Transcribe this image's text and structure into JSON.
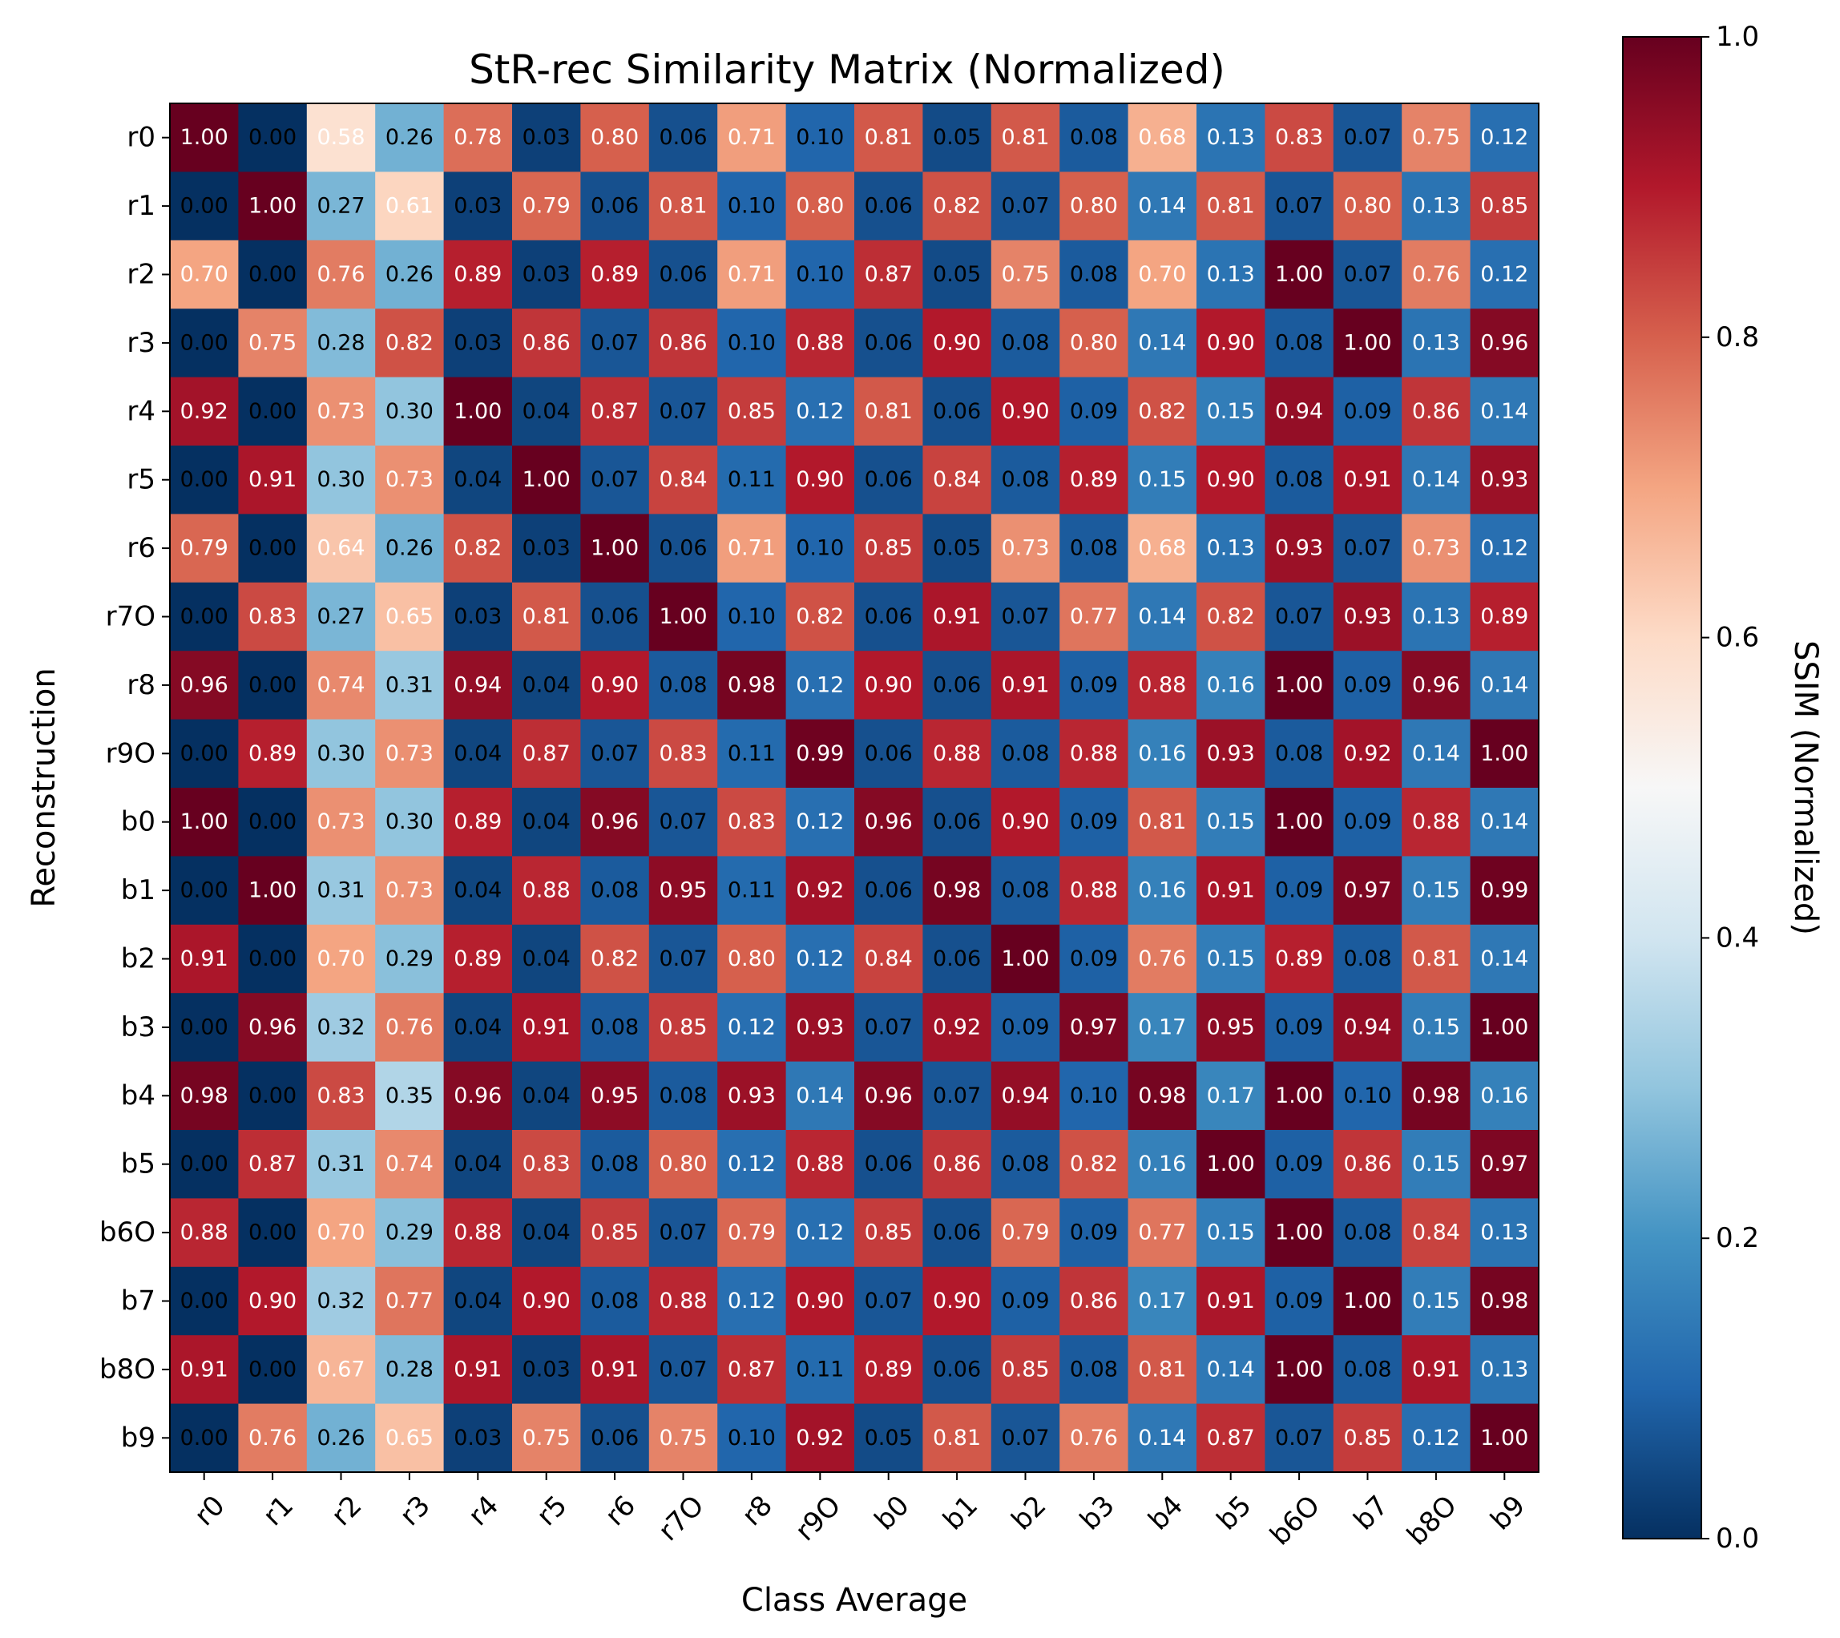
{
  "chart_data": {
    "type": "heatmap",
    "title": "StR-rec Similarity Matrix (Normalized)",
    "xlabel": "Class Average",
    "ylabel": "Reconstruction",
    "colorbar_label": "SSIM (Normalized)",
    "colormap": "RdBu_r",
    "vmin": 0.0,
    "vmax": 1.0,
    "colorbar_ticks": [
      "0.0",
      "0.2",
      "0.4",
      "0.6",
      "0.8",
      "1.0"
    ],
    "x_categories": [
      "r0",
      "r1",
      "r2",
      "r3",
      "r4",
      "r5",
      "r6",
      "r7O",
      "r8",
      "r9O",
      "b0",
      "b1",
      "b2",
      "b3",
      "b4",
      "b5",
      "b6O",
      "b7",
      "b8O",
      "b9"
    ],
    "y_categories": [
      "r0",
      "r1",
      "r2",
      "r3",
      "r4",
      "r5",
      "r6",
      "r7O",
      "r8",
      "r9O",
      "b0",
      "b1",
      "b2",
      "b3",
      "b4",
      "b5",
      "b6O",
      "b7",
      "b8O",
      "b9"
    ],
    "values": [
      [
        1.0,
        0.0,
        0.58,
        0.26,
        0.78,
        0.03,
        0.8,
        0.06,
        0.71,
        0.1,
        0.81,
        0.05,
        0.81,
        0.08,
        0.68,
        0.13,
        0.83,
        0.07,
        0.75,
        0.12
      ],
      [
        0.0,
        1.0,
        0.27,
        0.61,
        0.03,
        0.79,
        0.06,
        0.81,
        0.1,
        0.8,
        0.06,
        0.82,
        0.07,
        0.8,
        0.14,
        0.81,
        0.07,
        0.8,
        0.13,
        0.85
      ],
      [
        0.7,
        0.0,
        0.76,
        0.26,
        0.89,
        0.03,
        0.89,
        0.06,
        0.71,
        0.1,
        0.87,
        0.05,
        0.75,
        0.08,
        0.7,
        0.13,
        1.0,
        0.07,
        0.76,
        0.12
      ],
      [
        0.0,
        0.75,
        0.28,
        0.82,
        0.03,
        0.86,
        0.07,
        0.86,
        0.1,
        0.88,
        0.06,
        0.9,
        0.08,
        0.8,
        0.14,
        0.9,
        0.08,
        1.0,
        0.13,
        0.96
      ],
      [
        0.92,
        0.0,
        0.73,
        0.3,
        1.0,
        0.04,
        0.87,
        0.07,
        0.85,
        0.12,
        0.81,
        0.06,
        0.9,
        0.09,
        0.82,
        0.15,
        0.94,
        0.09,
        0.86,
        0.14
      ],
      [
        0.0,
        0.91,
        0.3,
        0.73,
        0.04,
        1.0,
        0.07,
        0.84,
        0.11,
        0.9,
        0.06,
        0.84,
        0.08,
        0.89,
        0.15,
        0.9,
        0.08,
        0.91,
        0.14,
        0.93
      ],
      [
        0.79,
        0.0,
        0.64,
        0.26,
        0.82,
        0.03,
        1.0,
        0.06,
        0.71,
        0.1,
        0.85,
        0.05,
        0.73,
        0.08,
        0.68,
        0.13,
        0.93,
        0.07,
        0.73,
        0.12
      ],
      [
        0.0,
        0.83,
        0.27,
        0.65,
        0.03,
        0.81,
        0.06,
        1.0,
        0.1,
        0.82,
        0.06,
        0.91,
        0.07,
        0.77,
        0.14,
        0.82,
        0.07,
        0.93,
        0.13,
        0.89
      ],
      [
        0.96,
        0.0,
        0.74,
        0.31,
        0.94,
        0.04,
        0.9,
        0.08,
        0.98,
        0.12,
        0.9,
        0.06,
        0.91,
        0.09,
        0.88,
        0.16,
        1.0,
        0.09,
        0.96,
        0.14
      ],
      [
        0.0,
        0.89,
        0.3,
        0.73,
        0.04,
        0.87,
        0.07,
        0.83,
        0.11,
        0.99,
        0.06,
        0.88,
        0.08,
        0.88,
        0.16,
        0.93,
        0.08,
        0.92,
        0.14,
        1.0
      ],
      [
        1.0,
        0.0,
        0.73,
        0.3,
        0.89,
        0.04,
        0.96,
        0.07,
        0.83,
        0.12,
        0.96,
        0.06,
        0.9,
        0.09,
        0.81,
        0.15,
        1.0,
        0.09,
        0.88,
        0.14
      ],
      [
        0.0,
        1.0,
        0.31,
        0.73,
        0.04,
        0.88,
        0.08,
        0.95,
        0.11,
        0.92,
        0.06,
        0.98,
        0.08,
        0.88,
        0.16,
        0.91,
        0.09,
        0.97,
        0.15,
        0.99
      ],
      [
        0.91,
        0.0,
        0.7,
        0.29,
        0.89,
        0.04,
        0.82,
        0.07,
        0.8,
        0.12,
        0.84,
        0.06,
        1.0,
        0.09,
        0.76,
        0.15,
        0.89,
        0.08,
        0.81,
        0.14
      ],
      [
        0.0,
        0.96,
        0.32,
        0.76,
        0.04,
        0.91,
        0.08,
        0.85,
        0.12,
        0.93,
        0.07,
        0.92,
        0.09,
        0.97,
        0.17,
        0.95,
        0.09,
        0.94,
        0.15,
        1.0
      ],
      [
        0.98,
        0.0,
        0.83,
        0.35,
        0.96,
        0.04,
        0.95,
        0.08,
        0.93,
        0.14,
        0.96,
        0.07,
        0.94,
        0.1,
        0.98,
        0.17,
        1.0,
        0.1,
        0.98,
        0.16
      ],
      [
        0.0,
        0.87,
        0.31,
        0.74,
        0.04,
        0.83,
        0.08,
        0.8,
        0.12,
        0.88,
        0.06,
        0.86,
        0.08,
        0.82,
        0.16,
        1.0,
        0.09,
        0.86,
        0.15,
        0.97
      ],
      [
        0.88,
        0.0,
        0.7,
        0.29,
        0.88,
        0.04,
        0.85,
        0.07,
        0.79,
        0.12,
        0.85,
        0.06,
        0.79,
        0.09,
        0.77,
        0.15,
        1.0,
        0.08,
        0.84,
        0.13
      ],
      [
        0.0,
        0.9,
        0.32,
        0.77,
        0.04,
        0.9,
        0.08,
        0.88,
        0.12,
        0.9,
        0.07,
        0.9,
        0.09,
        0.86,
        0.17,
        0.91,
        0.09,
        1.0,
        0.15,
        0.98
      ],
      [
        0.91,
        0.0,
        0.67,
        0.28,
        0.91,
        0.03,
        0.91,
        0.07,
        0.87,
        0.11,
        0.89,
        0.06,
        0.85,
        0.08,
        0.81,
        0.14,
        1.0,
        0.08,
        0.91,
        0.13
      ],
      [
        0.0,
        0.76,
        0.26,
        0.65,
        0.03,
        0.75,
        0.06,
        0.75,
        0.1,
        0.92,
        0.05,
        0.81,
        0.07,
        0.76,
        0.14,
        0.87,
        0.07,
        0.85,
        0.12,
        1.0
      ]
    ]
  }
}
